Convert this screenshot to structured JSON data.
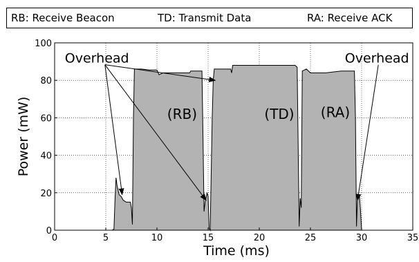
{
  "legend": {
    "items": [
      {
        "abbr": "RB",
        "text": "RB: Receive Beacon"
      },
      {
        "abbr": "TD",
        "text": "TD: Transmit Data"
      },
      {
        "abbr": "RA",
        "text": "RA: Receive ACK"
      }
    ]
  },
  "chart_data": {
    "type": "area",
    "title": "",
    "xlabel": "Time (ms)",
    "ylabel": "Power (mW)",
    "xlim": [
      0,
      35
    ],
    "ylim": [
      0,
      100
    ],
    "xticks": [
      0,
      5,
      10,
      15,
      20,
      25,
      30,
      35
    ],
    "yticks": [
      0,
      20,
      40,
      60,
      80,
      100
    ],
    "grid": true,
    "series": [
      {
        "values": [
          [
            0,
            0
          ],
          [
            5.6,
            0
          ],
          [
            5.8,
            0.5
          ],
          [
            5.9,
            16
          ],
          [
            6.0,
            28
          ],
          [
            6.1,
            24
          ],
          [
            6.3,
            19
          ],
          [
            6.5,
            18
          ],
          [
            6.7,
            16
          ],
          [
            7.0,
            15
          ],
          [
            7.4,
            15
          ],
          [
            7.5,
            12
          ],
          [
            7.6,
            3
          ],
          [
            7.7,
            60
          ],
          [
            7.8,
            86
          ],
          [
            8.5,
            86
          ],
          [
            9.3,
            85.5
          ],
          [
            10.0,
            85.5
          ],
          [
            10.2,
            83
          ],
          [
            10.6,
            84
          ],
          [
            11.0,
            84
          ],
          [
            12.0,
            84
          ],
          [
            13.2,
            84
          ],
          [
            13.3,
            85
          ],
          [
            14.0,
            85
          ],
          [
            14.4,
            85
          ],
          [
            14.5,
            50
          ],
          [
            14.6,
            10
          ],
          [
            14.7,
            15
          ],
          [
            14.9,
            20
          ],
          [
            15.0,
            18
          ],
          [
            15.1,
            1
          ],
          [
            15.2,
            0
          ],
          [
            15.4,
            60
          ],
          [
            15.5,
            80
          ],
          [
            15.6,
            86
          ],
          [
            16.0,
            86
          ],
          [
            17.0,
            86
          ],
          [
            17.2,
            86
          ],
          [
            17.3,
            84
          ],
          [
            17.4,
            88
          ],
          [
            20.0,
            88
          ],
          [
            23.5,
            88
          ],
          [
            23.7,
            87
          ],
          [
            23.9,
            2
          ],
          [
            24.0,
            17
          ],
          [
            24.1,
            12
          ],
          [
            24.2,
            85
          ],
          [
            24.6,
            86
          ],
          [
            25.0,
            84
          ],
          [
            26.5,
            84
          ],
          [
            28.0,
            85
          ],
          [
            29.3,
            85
          ],
          [
            29.4,
            60
          ],
          [
            29.5,
            2
          ],
          [
            29.6,
            18
          ],
          [
            29.8,
            18
          ],
          [
            29.9,
            10
          ],
          [
            30.0,
            0
          ],
          [
            35,
            0
          ]
        ]
      }
    ],
    "annotations": [
      {
        "label": "Overhead",
        "x": 1.0,
        "y": 92,
        "targets": [
          [
            6.6,
            19
          ],
          [
            15.7,
            80
          ],
          [
            14.8,
            16
          ]
        ]
      },
      {
        "label": "Overhead",
        "x": 31.5,
        "y": 92,
        "targets": [
          [
            29.6,
            16
          ]
        ]
      },
      {
        "label": "(RB)",
        "x": 11.0,
        "y": 62
      },
      {
        "label": "(TD)",
        "x": 20.5,
        "y": 62
      },
      {
        "label": "(RA)",
        "x": 26.0,
        "y": 63
      }
    ]
  }
}
